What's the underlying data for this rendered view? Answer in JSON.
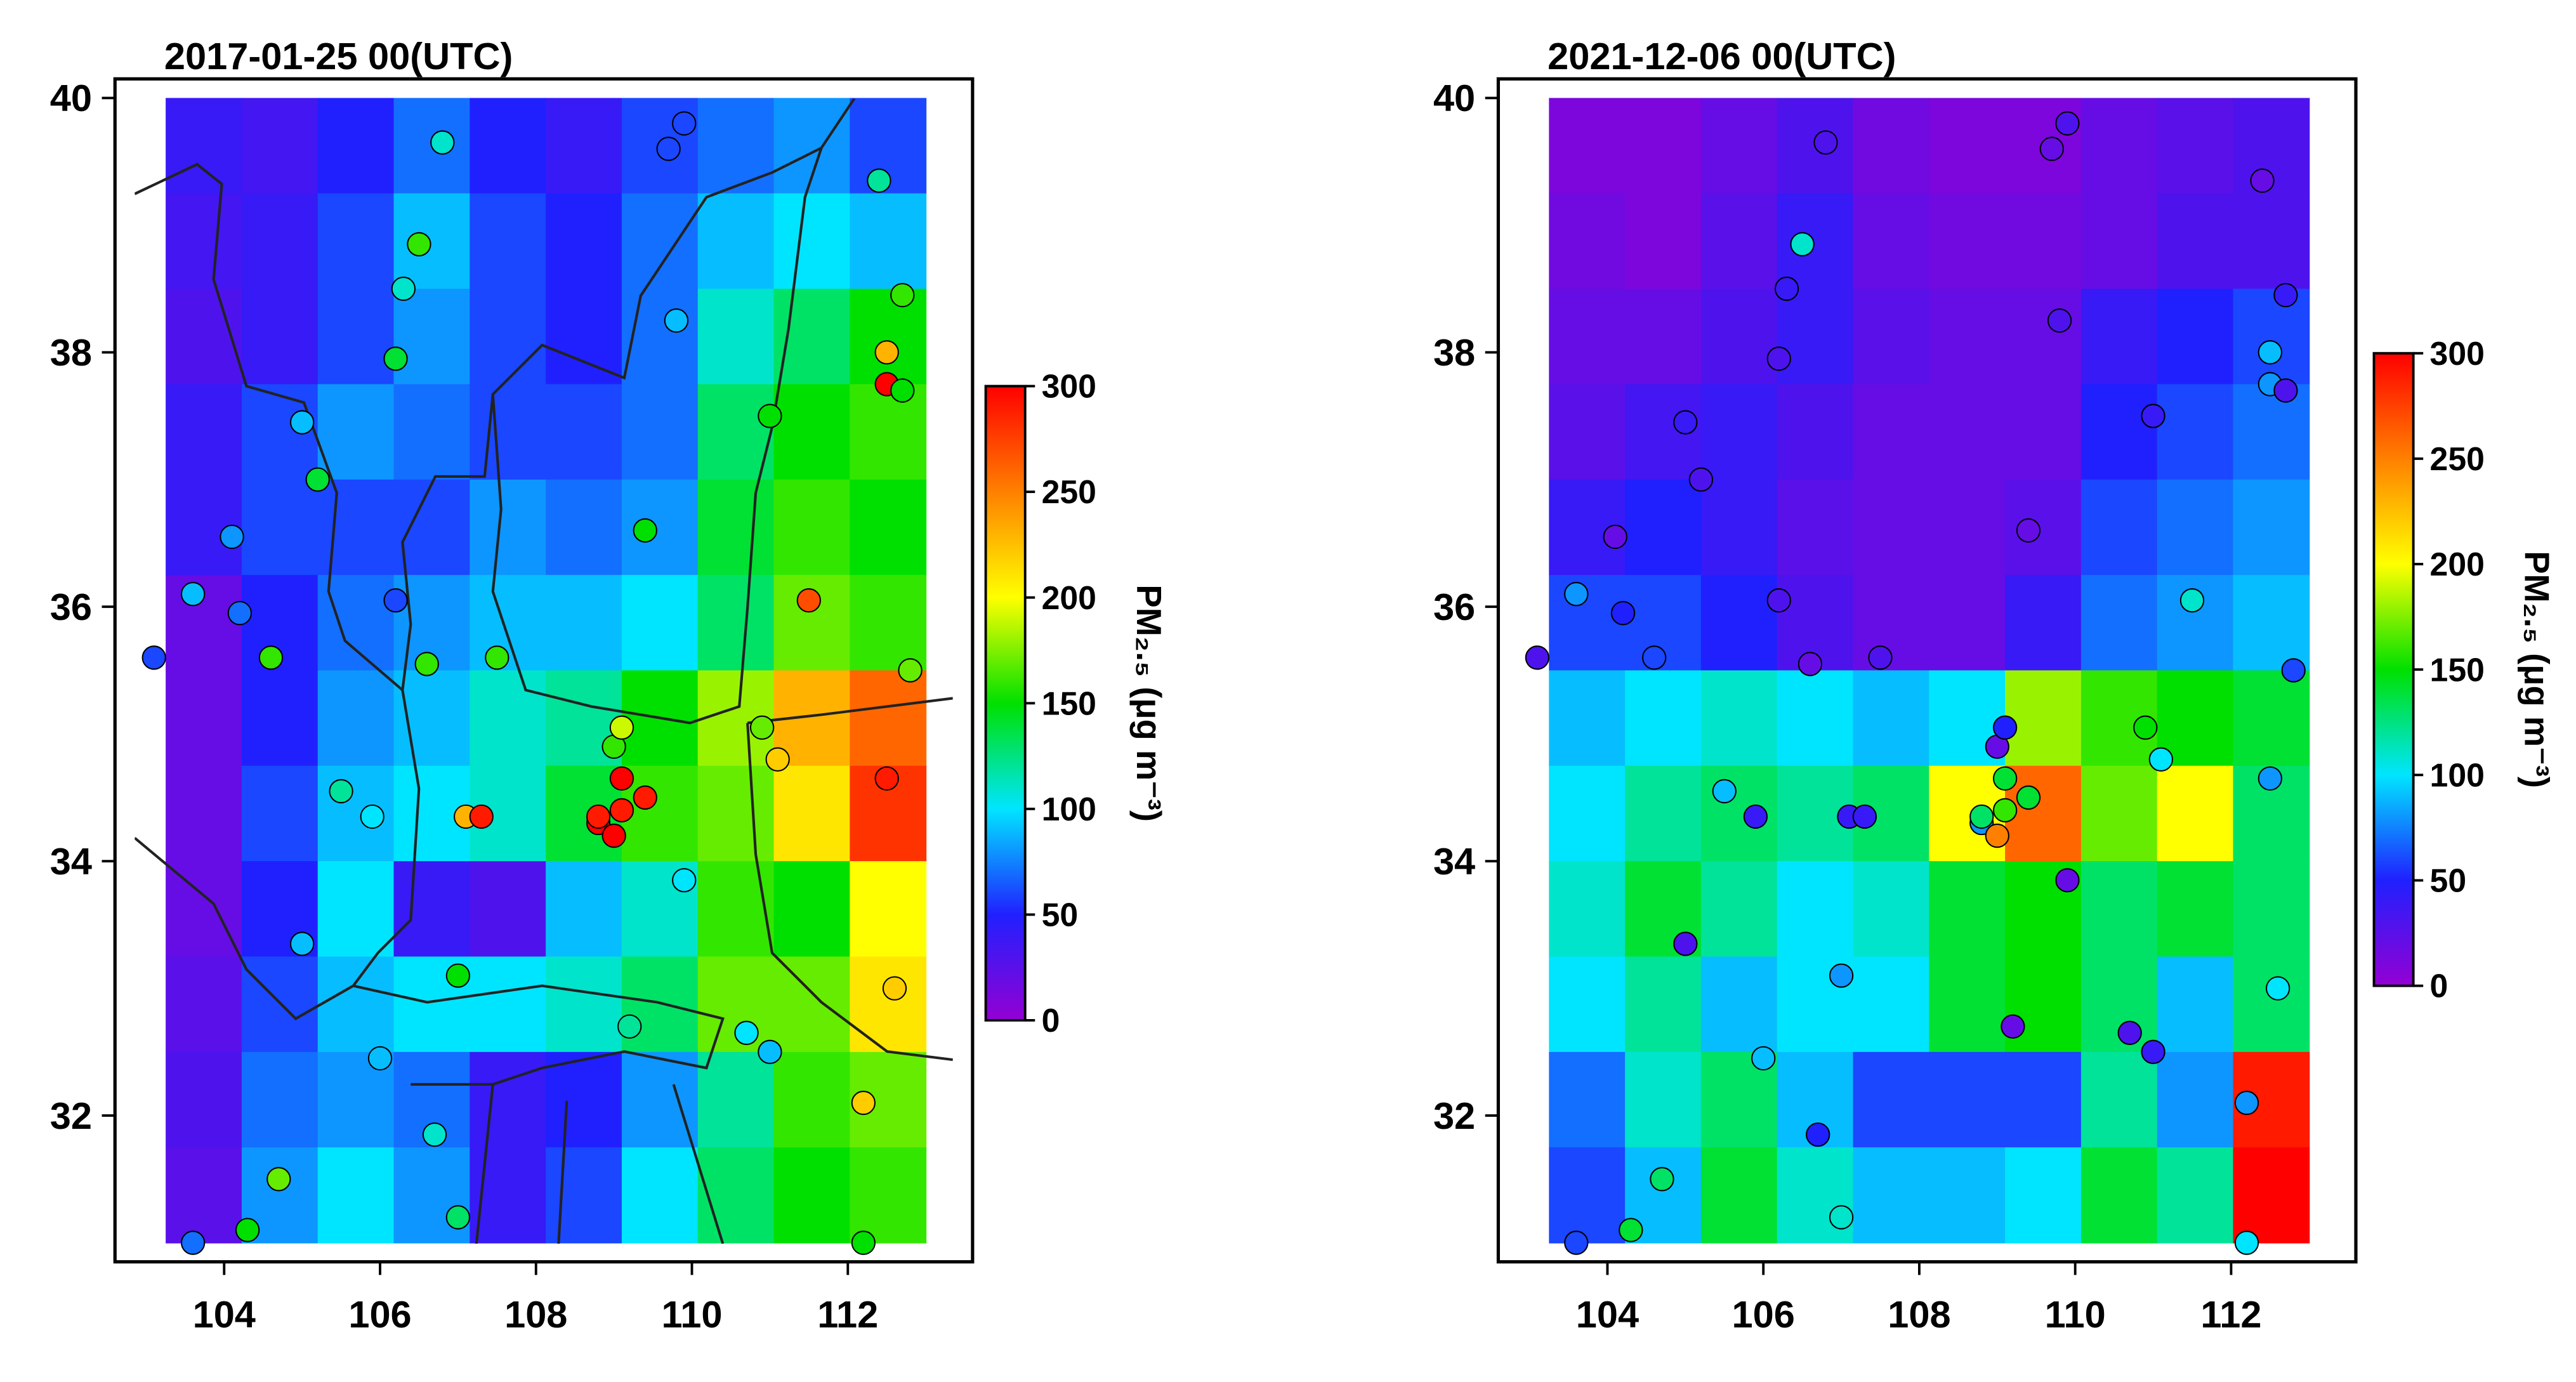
{
  "chart_data": [
    {
      "type": "heatmap",
      "title": "2017-01-25 00(UTC)",
      "xlim": [
        102.6,
        113.6
      ],
      "ylim": [
        30.85,
        40.15
      ],
      "xticks": [
        104,
        106,
        108,
        110,
        112
      ],
      "yticks": [
        32,
        34,
        36,
        38,
        40
      ],
      "zxlim": [
        103.25,
        113
      ],
      "zylim": [
        31,
        40
      ],
      "z": [
        [
          40,
          35,
          50,
          70,
          50,
          40,
          60,
          70,
          80,
          60
        ],
        [
          35,
          40,
          60,
          90,
          60,
          50,
          70,
          90,
          100,
          90
        ],
        [
          30,
          40,
          60,
          80,
          60,
          50,
          70,
          110,
          130,
          150
        ],
        [
          40,
          60,
          80,
          70,
          60,
          60,
          70,
          130,
          150,
          160
        ],
        [
          40,
          60,
          60,
          60,
          80,
          70,
          80,
          140,
          160,
          150
        ],
        [
          20,
          50,
          70,
          80,
          90,
          90,
          100,
          130,
          170,
          160
        ],
        [
          20,
          50,
          80,
          90,
          110,
          120,
          150,
          180,
          230,
          260
        ],
        [
          20,
          60,
          90,
          100,
          110,
          140,
          160,
          170,
          210,
          280
        ],
        [
          20,
          50,
          100,
          40,
          30,
          90,
          110,
          160,
          150,
          200
        ],
        [
          25,
          60,
          90,
          100,
          100,
          110,
          130,
          170,
          170,
          210
        ],
        [
          30,
          70,
          80,
          70,
          40,
          50,
          80,
          120,
          160,
          170
        ],
        [
          25,
          80,
          100,
          80,
          40,
          60,
          100,
          130,
          150,
          160
        ]
      ],
      "x": [
        103.1,
        103.6,
        104.3,
        104.7,
        105.0,
        104.1,
        103.6,
        104.2,
        104.6,
        105.0,
        105.2,
        105.5,
        105.9,
        106.0,
        106.2,
        106.5,
        106.3,
        106.8,
        106.2,
        106.6,
        106.7,
        107.0,
        107.1,
        107.5,
        107.3,
        107.0,
        108.8,
        109.0,
        109.1,
        108.8,
        109.1,
        109.4,
        109.0,
        109.1,
        109.4,
        109.2,
        109.9,
        109.8,
        109.7,
        109.9,
        110.7,
        111.0,
        111.1,
        110.9,
        111.0,
        111.5,
        112.2,
        112.2,
        112.4,
        112.5,
        112.5,
        112.5,
        112.7,
        112.7,
        112.6,
        112.8
      ],
      "y": [
        35.6,
        31.0,
        31.1,
        31.5,
        33.35,
        36.55,
        36.1,
        35.95,
        35.6,
        37.45,
        37.0,
        34.55,
        34.35,
        32.45,
        36.05,
        38.85,
        38.5,
        39.65,
        37.95,
        35.55,
        31.85,
        33.1,
        34.35,
        35.6,
        34.35,
        31.2,
        34.3,
        34.2,
        34.4,
        34.35,
        34.65,
        34.5,
        34.9,
        35.05,
        36.6,
        32.7,
        33.85,
        38.25,
        39.6,
        39.8,
        32.65,
        32.5,
        34.8,
        35.05,
        37.5,
        36.05,
        32.1,
        31.0,
        39.35,
        34.65,
        37.75,
        38.0,
        38.45,
        37.7,
        33.0,
        35.5
      ],
      "values": [
        60,
        70,
        150,
        170,
        90,
        80,
        90,
        70,
        160,
        90,
        140,
        120,
        100,
        90,
        60,
        160,
        110,
        110,
        140,
        160,
        110,
        150,
        230,
        160,
        290,
        130,
        300,
        300,
        290,
        290,
        300,
        290,
        160,
        190,
        150,
        120,
        100,
        90,
        60,
        60,
        100,
        90,
        220,
        170,
        150,
        270,
        220,
        150,
        120,
        290,
        300,
        230,
        160,
        150,
        220,
        170
      ],
      "colorscale": [
        "#9400d3",
        "#2020ff",
        "#00e5ff",
        "#00e000",
        "#ffff00",
        "#ff8000",
        "#ff0000"
      ],
      "clim": [
        0,
        300
      ],
      "cticks": [
        0,
        50,
        100,
        150,
        200,
        250,
        300
      ],
      "colorbar_label": "PM₂.₅ (μg m⁻³)"
    },
    {
      "type": "heatmap",
      "title": "2021-12-06 00(UTC)",
      "xlim": [
        102.6,
        113.6
      ],
      "ylim": [
        30.85,
        40.15
      ],
      "xticks": [
        104,
        106,
        108,
        110,
        112
      ],
      "yticks": [
        32,
        34,
        36,
        38,
        40
      ],
      "zxlim": [
        103.25,
        113
      ],
      "zylim": [
        31,
        40
      ],
      "z": [
        [
          10,
          10,
          20,
          30,
          15,
          10,
          10,
          20,
          25,
          30
        ],
        [
          15,
          10,
          25,
          40,
          20,
          15,
          15,
          20,
          30,
          30
        ],
        [
          20,
          20,
          30,
          40,
          25,
          20,
          20,
          40,
          50,
          60
        ],
        [
          25,
          35,
          40,
          30,
          20,
          20,
          20,
          50,
          60,
          70
        ],
        [
          40,
          50,
          40,
          25,
          20,
          20,
          25,
          60,
          70,
          80
        ],
        [
          60,
          60,
          50,
          30,
          20,
          20,
          40,
          70,
          80,
          90
        ],
        [
          90,
          100,
          110,
          100,
          90,
          100,
          180,
          160,
          150,
          140
        ],
        [
          100,
          120,
          130,
          120,
          130,
          200,
          260,
          170,
          200,
          130
        ],
        [
          110,
          140,
          120,
          100,
          110,
          140,
          150,
          130,
          140,
          130
        ],
        [
          100,
          120,
          90,
          100,
          100,
          140,
          150,
          130,
          90,
          130
        ],
        [
          70,
          110,
          130,
          90,
          60,
          60,
          60,
          120,
          80,
          290
        ],
        [
          60,
          90,
          140,
          110,
          90,
          90,
          100,
          140,
          120,
          300
        ]
      ],
      "x": [
        103.1,
        103.6,
        104.3,
        104.7,
        105.0,
        104.1,
        103.6,
        104.2,
        104.6,
        105.0,
        105.2,
        105.5,
        105.9,
        106.0,
        106.2,
        106.5,
        106.3,
        106.8,
        106.2,
        106.6,
        106.7,
        107.0,
        107.1,
        107.5,
        107.3,
        107.0,
        108.8,
        109.0,
        109.1,
        108.8,
        109.1,
        109.4,
        109.0,
        109.1,
        109.4,
        109.2,
        109.9,
        109.8,
        109.7,
        109.9,
        110.7,
        111.0,
        111.1,
        110.9,
        111.0,
        111.5,
        112.2,
        112.2,
        112.4,
        112.5,
        112.5,
        112.5,
        112.7,
        112.7,
        112.6,
        112.8
      ],
      "y": [
        35.6,
        31.0,
        31.1,
        31.5,
        33.35,
        36.55,
        36.1,
        35.95,
        35.6,
        37.45,
        37.0,
        34.55,
        34.35,
        32.45,
        36.05,
        38.85,
        38.5,
        39.65,
        37.95,
        35.55,
        31.85,
        33.1,
        34.35,
        35.6,
        34.35,
        31.2,
        34.3,
        34.2,
        34.4,
        34.35,
        34.65,
        34.5,
        34.9,
        35.05,
        36.6,
        32.7,
        33.85,
        38.25,
        39.6,
        39.8,
        32.65,
        32.5,
        34.8,
        35.05,
        37.5,
        36.05,
        32.1,
        31.0,
        39.35,
        34.65,
        37.75,
        38.0,
        38.45,
        37.7,
        33.0,
        35.5
      ],
      "values": [
        30,
        60,
        140,
        130,
        30,
        20,
        80,
        50,
        60,
        40,
        30,
        90,
        40,
        90,
        30,
        110,
        40,
        30,
        30,
        20,
        50,
        80,
        40,
        30,
        40,
        110,
        80,
        250,
        160,
        130,
        140,
        140,
        20,
        50,
        20,
        20,
        20,
        30,
        20,
        30,
        30,
        40,
        100,
        150,
        40,
        110,
        80,
        100,
        20,
        80,
        80,
        90,
        40,
        30,
        100,
        60
      ],
      "colorscale": [
        "#9400d3",
        "#2020ff",
        "#00e5ff",
        "#00e000",
        "#ffff00",
        "#ff8000",
        "#ff0000"
      ],
      "clim": [
        0,
        300
      ],
      "cticks": [
        0,
        50,
        100,
        150,
        200,
        250,
        300
      ],
      "colorbar_label": "PM₂.₅ (μg m⁻³)"
    }
  ]
}
